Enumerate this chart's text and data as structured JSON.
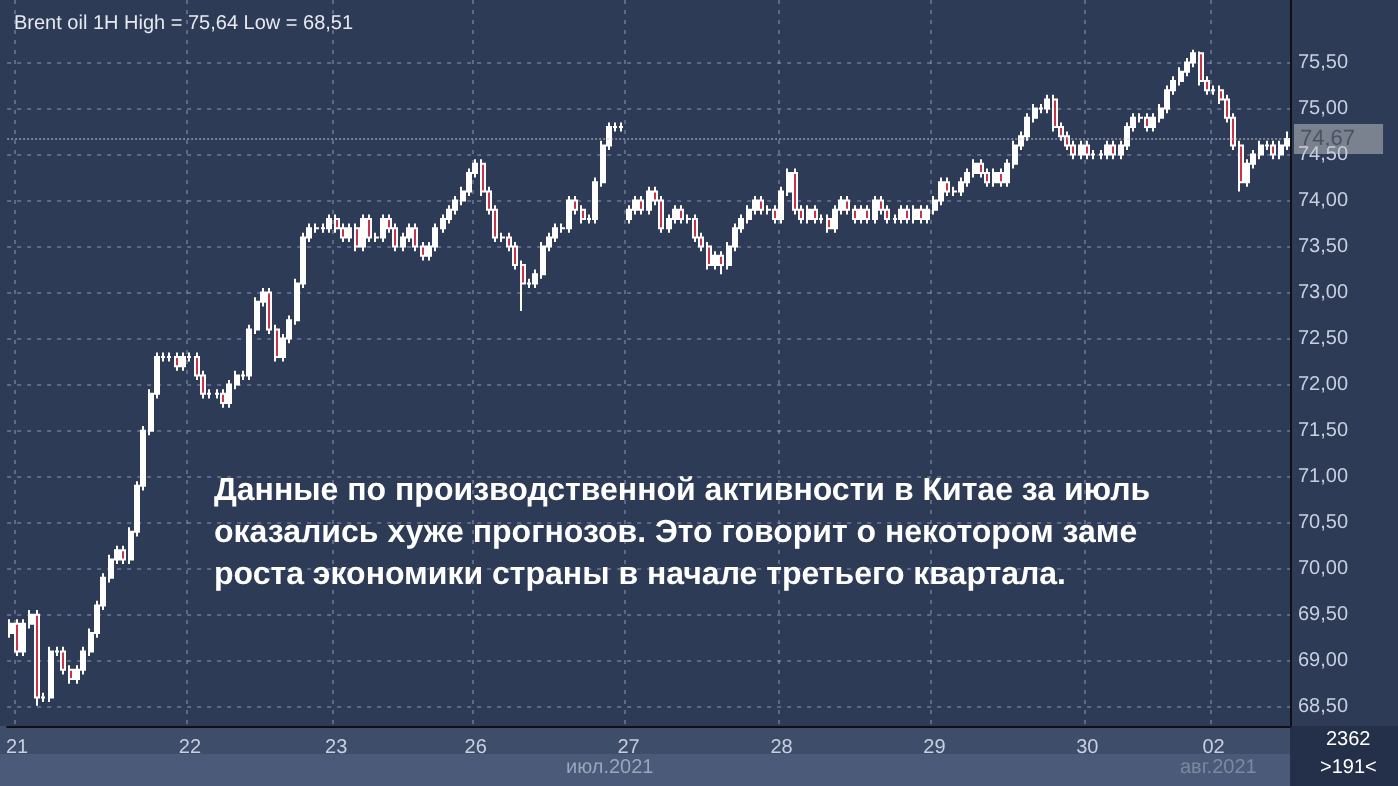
{
  "chart_data": {
    "type": "candlestick",
    "title": "Brent oil 1H High = 75,64 Low = 68,51",
    "color": "#ffffff",
    "categories": [
      null,
      "21",
      null,
      null,
      null,
      null,
      null,
      null,
      null,
      null,
      null,
      null,
      null,
      null,
      null,
      null,
      null,
      null,
      null,
      null,
      null,
      null,
      null,
      null,
      null,
      null,
      null,
      "22",
      null,
      null,
      null,
      null,
      null,
      null,
      null,
      null,
      null,
      null,
      null,
      null,
      null,
      null,
      null,
      null,
      null,
      null,
      null,
      null,
      null,
      "23",
      null,
      null,
      null,
      null,
      null,
      null,
      null,
      null,
      null,
      null,
      null,
      null,
      null,
      null,
      null,
      null,
      null,
      null,
      null,
      null,
      "26",
      null,
      null,
      null,
      null,
      null,
      null,
      null,
      null,
      null,
      null,
      null,
      null,
      null,
      null,
      null,
      null,
      null,
      null,
      null,
      null,
      null,
      null,
      "27",
      null,
      null,
      null,
      null,
      null,
      null,
      null,
      null,
      null,
      null,
      null,
      null,
      null,
      null,
      null,
      null,
      null,
      null,
      null,
      null,
      null,
      null,
      "28",
      null,
      null,
      null,
      null,
      null,
      null,
      null,
      null,
      null,
      null,
      null,
      null,
      null,
      null,
      null,
      null,
      null,
      null,
      null,
      null,
      null,
      null,
      "29",
      null,
      null,
      null,
      null,
      null,
      null,
      null,
      null,
      null,
      null,
      null,
      null,
      null,
      null,
      null,
      null,
      null,
      null,
      null,
      null,
      null,
      null,
      "30",
      null,
      null,
      null,
      null,
      null,
      null,
      null,
      null,
      null,
      null,
      null,
      null,
      null,
      null,
      null,
      null,
      null,
      null,
      "02",
      null,
      null,
      null,
      null,
      null,
      null,
      null,
      null,
      null,
      null,
      null
    ],
    "ohlc": [
      [
        69.3,
        69.45,
        69.25,
        69.4
      ],
      [
        69.4,
        69.45,
        69.05,
        69.1
      ],
      [
        69.1,
        69.45,
        69.05,
        69.4
      ],
      [
        69.4,
        69.55,
        69.35,
        69.5
      ],
      [
        69.5,
        69.55,
        68.51,
        68.6
      ],
      [
        68.6,
        68.65,
        68.55,
        68.6
      ],
      [
        68.6,
        69.15,
        68.55,
        69.1
      ],
      [
        69.1,
        69.15,
        69.05,
        69.1
      ],
      [
        69.1,
        69.15,
        68.85,
        68.9
      ],
      [
        68.9,
        68.95,
        68.75,
        68.8
      ],
      [
        68.8,
        68.95,
        68.75,
        68.9
      ],
      [
        68.9,
        69.15,
        68.85,
        69.1
      ],
      [
        69.1,
        69.35,
        69.05,
        69.3
      ],
      [
        69.3,
        69.65,
        69.25,
        69.6
      ],
      [
        69.6,
        69.95,
        69.55,
        69.9
      ],
      [
        69.9,
        70.15,
        69.85,
        70.1
      ],
      [
        70.1,
        70.25,
        70.05,
        70.2
      ],
      [
        70.2,
        70.25,
        70.05,
        70.1
      ],
      [
        70.1,
        70.45,
        70.05,
        70.4
      ],
      [
        70.4,
        70.95,
        70.35,
        70.9
      ],
      [
        70.9,
        71.55,
        70.85,
        71.5
      ],
      [
        71.5,
        71.95,
        71.45,
        71.9
      ],
      [
        71.9,
        72.35,
        71.85,
        72.3
      ],
      [
        72.3,
        72.35,
        72.25,
        72.3
      ],
      [
        72.3,
        72.35,
        72.25,
        72.3
      ],
      [
        72.3,
        72.35,
        72.15,
        72.2
      ],
      [
        72.2,
        72.35,
        72.15,
        72.3
      ],
      [
        72.3,
        72.35,
        72.25,
        72.3
      ],
      [
        72.3,
        72.35,
        72.05,
        72.1
      ],
      [
        72.1,
        72.15,
        71.85,
        71.9
      ],
      [
        71.9,
        71.95,
        71.85,
        71.9
      ],
      [
        71.9,
        71.95,
        71.85,
        71.9
      ],
      [
        71.9,
        71.95,
        71.75,
        71.8
      ],
      [
        71.8,
        72.05,
        71.75,
        72.0
      ],
      [
        72.0,
        72.15,
        71.95,
        72.1
      ],
      [
        72.1,
        72.15,
        72.05,
        72.1
      ],
      [
        72.1,
        72.65,
        72.05,
        72.6
      ],
      [
        72.6,
        72.95,
        72.55,
        72.9
      ],
      [
        72.9,
        73.05,
        72.85,
        73.0
      ],
      [
        73.0,
        73.05,
        72.55,
        72.6
      ],
      [
        72.6,
        72.65,
        72.25,
        72.3
      ],
      [
        72.3,
        72.55,
        72.25,
        72.5
      ],
      [
        72.5,
        72.75,
        72.45,
        72.7
      ],
      [
        72.7,
        73.15,
        72.65,
        73.1
      ],
      [
        73.1,
        73.65,
        73.05,
        73.6
      ],
      [
        73.6,
        73.75,
        73.55,
        73.7
      ],
      [
        73.7,
        73.75,
        73.65,
        73.7
      ],
      [
        73.7,
        73.75,
        73.65,
        73.7
      ],
      [
        73.7,
        73.85,
        73.65,
        73.8
      ],
      [
        73.8,
        73.85,
        73.65,
        73.7
      ],
      [
        73.7,
        73.75,
        73.55,
        73.6
      ],
      [
        73.6,
        73.75,
        73.55,
        73.7
      ],
      [
        73.7,
        73.75,
        73.45,
        73.5
      ],
      [
        73.5,
        73.85,
        73.45,
        73.8
      ],
      [
        73.8,
        73.85,
        73.55,
        73.6
      ],
      [
        73.6,
        73.65,
        73.55,
        73.6
      ],
      [
        73.6,
        73.85,
        73.55,
        73.8
      ],
      [
        73.8,
        73.85,
        73.65,
        73.7
      ],
      [
        73.7,
        73.75,
        73.45,
        73.5
      ],
      [
        73.5,
        73.65,
        73.45,
        73.6
      ],
      [
        73.6,
        73.75,
        73.55,
        73.7
      ],
      [
        73.7,
        73.75,
        73.45,
        73.5
      ],
      [
        73.5,
        73.55,
        73.35,
        73.4
      ],
      [
        73.4,
        73.55,
        73.35,
        73.5
      ],
      [
        73.5,
        73.75,
        73.45,
        73.7
      ],
      [
        73.7,
        73.85,
        73.65,
        73.8
      ],
      [
        73.8,
        73.95,
        73.75,
        73.9
      ],
      [
        73.9,
        74.05,
        73.85,
        74.0
      ],
      [
        74.0,
        74.15,
        73.95,
        74.1
      ],
      [
        74.1,
        74.35,
        74.05,
        74.3
      ],
      [
        74.3,
        74.45,
        74.25,
        74.4
      ],
      [
        74.4,
        74.45,
        74.05,
        74.1
      ],
      [
        74.1,
        74.15,
        73.85,
        73.9
      ],
      [
        73.9,
        73.95,
        73.55,
        73.6
      ],
      [
        73.6,
        73.65,
        73.55,
        73.6
      ],
      [
        73.6,
        73.65,
        73.45,
        73.5
      ],
      [
        73.5,
        73.55,
        73.25,
        73.3
      ],
      [
        73.3,
        73.35,
        72.8,
        73.1
      ],
      [
        73.1,
        73.15,
        73.05,
        73.1
      ],
      [
        73.1,
        73.25,
        73.05,
        73.2
      ],
      [
        73.2,
        73.55,
        73.15,
        73.5
      ],
      [
        73.5,
        73.65,
        73.45,
        73.6
      ],
      [
        73.6,
        73.75,
        73.55,
        73.7
      ],
      [
        73.7,
        73.75,
        73.65,
        73.7
      ],
      [
        73.7,
        74.05,
        73.65,
        74.0
      ],
      [
        74.0,
        74.05,
        73.85,
        73.9
      ],
      [
        73.9,
        73.95,
        73.75,
        73.8
      ],
      [
        73.8,
        73.85,
        73.75,
        73.8
      ],
      [
        73.8,
        74.25,
        73.75,
        74.2
      ],
      [
        74.2,
        74.65,
        74.15,
        74.6
      ],
      [
        74.6,
        74.85,
        74.55,
        74.8
      ],
      [
        74.8,
        74.85,
        74.75,
        74.8
      ],
      [
        74.8,
        74.85,
        74.75,
        74.8
      ],
      [
        73.8,
        73.95,
        73.75,
        73.9
      ],
      [
        73.9,
        74.05,
        73.85,
        74.0
      ],
      [
        74.0,
        74.05,
        73.85,
        73.9
      ],
      [
        73.9,
        74.15,
        73.85,
        74.1
      ],
      [
        74.1,
        74.15,
        73.95,
        74.0
      ],
      [
        74.0,
        74.05,
        73.65,
        73.7
      ],
      [
        73.7,
        73.85,
        73.65,
        73.8
      ],
      [
        73.8,
        73.95,
        73.75,
        73.9
      ],
      [
        73.9,
        73.95,
        73.75,
        73.8
      ],
      [
        73.8,
        73.85,
        73.75,
        73.8
      ],
      [
        73.8,
        73.85,
        73.55,
        73.6
      ],
      [
        73.6,
        73.65,
        73.45,
        73.5
      ],
      [
        73.5,
        73.55,
        73.25,
        73.3
      ],
      [
        73.3,
        73.45,
        73.25,
        73.4
      ],
      [
        73.4,
        73.45,
        73.2,
        73.3
      ],
      [
        73.3,
        73.55,
        73.25,
        73.5
      ],
      [
        73.5,
        73.75,
        73.45,
        73.7
      ],
      [
        73.7,
        73.85,
        73.65,
        73.8
      ],
      [
        73.8,
        73.95,
        73.75,
        73.9
      ],
      [
        73.9,
        74.05,
        73.85,
        74.0
      ],
      [
        74.0,
        74.05,
        73.85,
        73.9
      ],
      [
        73.9,
        73.95,
        73.85,
        73.9
      ],
      [
        73.9,
        73.95,
        73.75,
        73.8
      ],
      [
        73.8,
        74.15,
        73.75,
        74.1
      ],
      [
        74.1,
        74.35,
        74.05,
        74.3
      ],
      [
        74.3,
        74.35,
        73.85,
        73.9
      ],
      [
        73.9,
        73.95,
        73.75,
        73.8
      ],
      [
        73.8,
        73.95,
        73.75,
        73.9
      ],
      [
        73.9,
        73.95,
        73.75,
        73.8
      ],
      [
        73.8,
        73.85,
        73.75,
        73.8
      ],
      [
        73.8,
        73.85,
        73.65,
        73.7
      ],
      [
        73.7,
        73.95,
        73.65,
        73.9
      ],
      [
        73.9,
        74.05,
        73.85,
        74.0
      ],
      [
        74.0,
        74.05,
        73.85,
        73.9
      ],
      [
        73.9,
        73.95,
        73.75,
        73.8
      ],
      [
        73.8,
        73.95,
        73.75,
        73.9
      ],
      [
        73.9,
        73.95,
        73.75,
        73.8
      ],
      [
        73.8,
        74.05,
        73.75,
        74.0
      ],
      [
        74.0,
        74.05,
        73.85,
        73.9
      ],
      [
        73.9,
        73.95,
        73.75,
        73.8
      ],
      [
        73.8,
        73.85,
        73.75,
        73.8
      ],
      [
        73.8,
        73.95,
        73.75,
        73.9
      ],
      [
        73.9,
        73.95,
        73.75,
        73.8
      ],
      [
        73.8,
        73.95,
        73.75,
        73.9
      ],
      [
        73.9,
        73.95,
        73.75,
        73.8
      ],
      [
        73.8,
        73.95,
        73.75,
        73.9
      ],
      [
        73.9,
        74.05,
        73.85,
        74.0
      ],
      [
        74.0,
        74.25,
        73.95,
        74.2
      ],
      [
        74.2,
        74.25,
        74.05,
        74.1
      ],
      [
        74.1,
        74.15,
        74.05,
        74.1
      ],
      [
        74.1,
        74.25,
        74.05,
        74.2
      ],
      [
        74.2,
        74.35,
        74.15,
        74.3
      ],
      [
        74.3,
        74.45,
        74.25,
        74.4
      ],
      [
        74.4,
        74.45,
        74.25,
        74.3
      ],
      [
        74.3,
        74.35,
        74.15,
        74.2
      ],
      [
        74.2,
        74.35,
        74.15,
        74.3
      ],
      [
        74.3,
        74.35,
        74.15,
        74.2
      ],
      [
        74.2,
        74.45,
        74.15,
        74.4
      ],
      [
        74.4,
        74.65,
        74.35,
        74.6
      ],
      [
        74.6,
        74.75,
        74.55,
        74.7
      ],
      [
        74.7,
        74.95,
        74.65,
        74.9
      ],
      [
        74.9,
        75.05,
        74.85,
        75.0
      ],
      [
        75.0,
        75.05,
        74.95,
        75.0
      ],
      [
        75.0,
        75.15,
        74.95,
        75.1
      ],
      [
        75.1,
        75.15,
        74.75,
        74.8
      ],
      [
        74.8,
        74.85,
        74.65,
        74.7
      ],
      [
        74.7,
        74.75,
        74.55,
        74.6
      ],
      [
        74.6,
        74.65,
        74.45,
        74.5
      ],
      [
        74.5,
        74.65,
        74.45,
        74.6
      ],
      [
        74.6,
        74.65,
        74.45,
        74.5
      ],
      [
        74.5,
        74.55,
        74.45,
        74.5
      ],
      [
        74.5,
        74.55,
        74.45,
        74.5
      ],
      [
        74.5,
        74.65,
        74.45,
        74.6
      ],
      [
        74.6,
        74.65,
        74.45,
        74.5
      ],
      [
        74.5,
        74.65,
        74.45,
        74.6
      ],
      [
        74.6,
        74.85,
        74.55,
        74.8
      ],
      [
        74.8,
        74.95,
        74.75,
        74.9
      ],
      [
        74.9,
        74.95,
        74.85,
        74.9
      ],
      [
        74.9,
        74.95,
        74.75,
        74.8
      ],
      [
        74.8,
        74.95,
        74.75,
        74.9
      ],
      [
        74.9,
        75.05,
        74.85,
        75.0
      ],
      [
        75.0,
        75.25,
        74.95,
        75.2
      ],
      [
        75.2,
        75.35,
        75.15,
        75.3
      ],
      [
        75.3,
        75.45,
        75.25,
        75.4
      ],
      [
        75.4,
        75.55,
        75.35,
        75.5
      ],
      [
        75.5,
        75.64,
        75.45,
        75.6
      ],
      [
        75.6,
        75.62,
        75.25,
        75.3
      ],
      [
        75.3,
        75.35,
        75.15,
        75.2
      ],
      [
        75.2,
        75.25,
        75.15,
        75.2
      ],
      [
        75.2,
        75.25,
        75.05,
        75.1
      ],
      [
        75.1,
        75.15,
        74.85,
        74.9
      ],
      [
        74.9,
        74.95,
        74.55,
        74.6
      ],
      [
        74.6,
        74.65,
        74.1,
        74.2
      ],
      [
        74.2,
        74.45,
        74.15,
        74.4
      ],
      [
        74.4,
        74.55,
        74.35,
        74.5
      ],
      [
        74.5,
        74.65,
        74.45,
        74.6
      ],
      [
        74.6,
        74.65,
        74.55,
        74.6
      ],
      [
        74.6,
        74.65,
        74.45,
        74.5
      ],
      [
        74.5,
        74.65,
        74.45,
        74.6
      ],
      [
        74.6,
        74.75,
        74.55,
        74.67
      ]
    ],
    "ylim": [
      68.29,
      76.18
    ],
    "yticks": [
      {
        "value": 68.5,
        "label": "68,50"
      },
      {
        "value": 69,
        "label": "69,00"
      },
      {
        "value": 69.5,
        "label": "69,50"
      },
      {
        "value": 70,
        "label": "70,00"
      },
      {
        "value": 70.5,
        "label": "70,50"
      },
      {
        "value": 71,
        "label": "71,00"
      },
      {
        "value": 71.5,
        "label": "71,50"
      },
      {
        "value": 72,
        "label": "72,00"
      },
      {
        "value": 72.5,
        "label": "72,50"
      },
      {
        "value": 73,
        "label": "73,00"
      },
      {
        "value": 73.5,
        "label": "73,50"
      },
      {
        "value": 74,
        "label": "74,00"
      },
      {
        "value": 74.5,
        "label": "74,50"
      },
      {
        "value": 75,
        "label": "75,00"
      },
      {
        "value": 75.5,
        "label": "75,50"
      }
    ],
    "grid": true,
    "ref_lines": [
      {
        "axis": "y",
        "value": 74.67,
        "label": "74,67",
        "color": "#c8c8c8"
      }
    ],
    "annotations": [
      "Данные по производственной активности в Китае за июль\nоказались хуже прогнозов. Это говорит о некотором заме\nроста экономики страны в начале третьего квартала.",
      "июл.2021",
      "авг.2021",
      "2362",
      ">191<"
    ]
  }
}
